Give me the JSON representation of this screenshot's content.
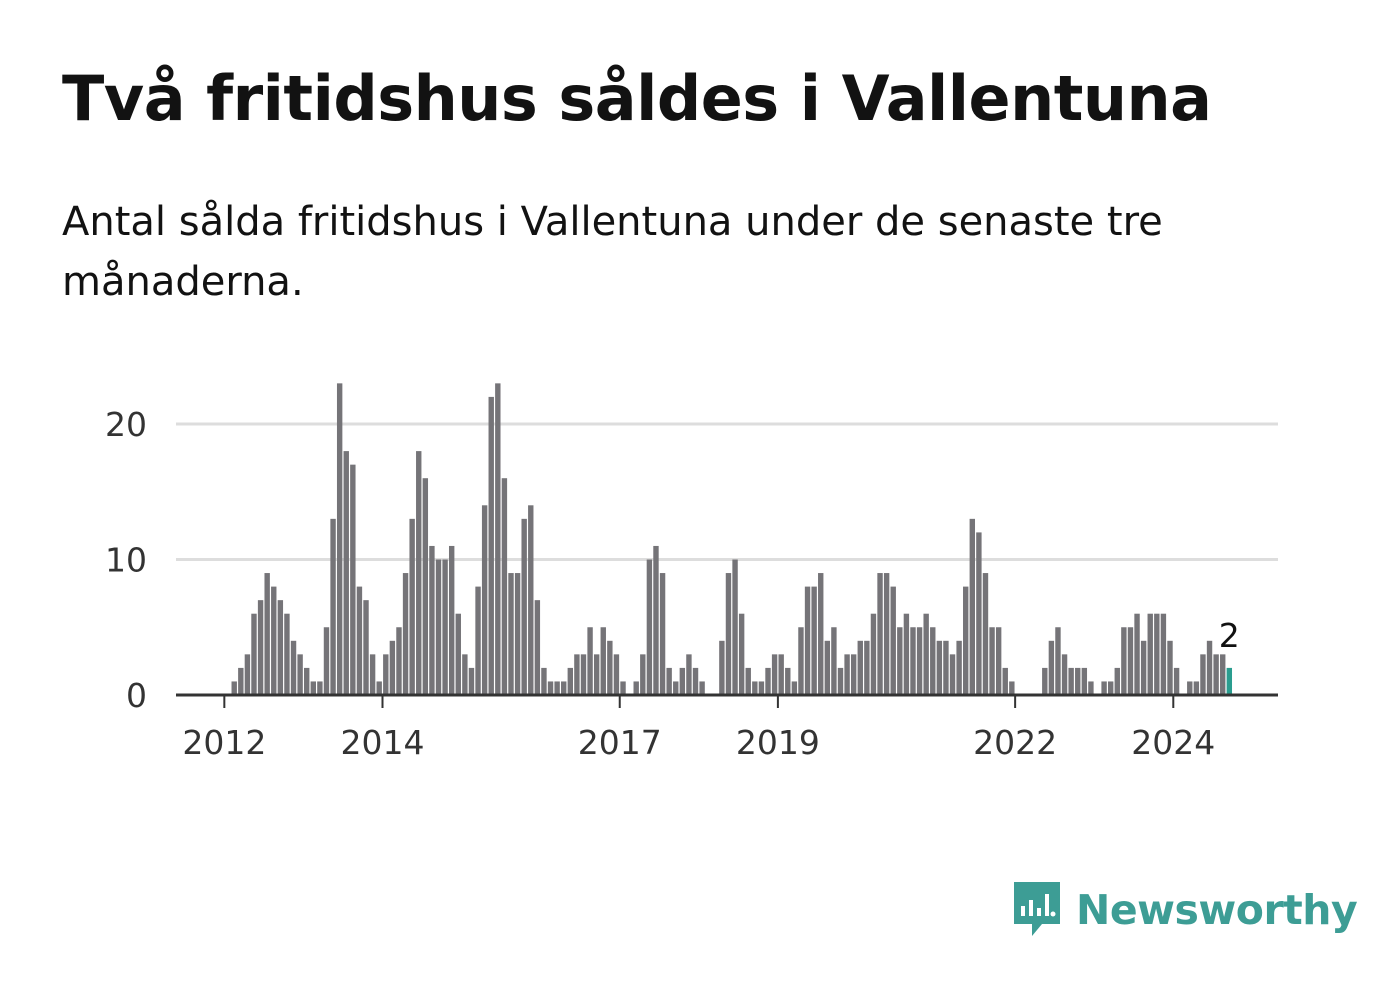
{
  "header": {
    "title": "Två fritidshus såldes i Vallentuna",
    "subtitle": "Antal sålda fritidshus i Vallentuna under de senaste tre månaderna."
  },
  "brand": {
    "name": "Newsworthy",
    "icon": "newsworthy-logo-icon"
  },
  "colors": {
    "bar": "#757478",
    "highlight": "#2a9d8f",
    "grid": "#dddddd",
    "axis": "#333333",
    "brand": "#3d9d95"
  },
  "chart_data": {
    "type": "bar",
    "title": "Antal sålda fritidshus i Vallentuna",
    "xlabel": "",
    "ylabel": "",
    "ylim": [
      0,
      23
    ],
    "yticks": [
      0,
      10,
      20
    ],
    "xticks": [
      {
        "label": "2012",
        "index": 7
      },
      {
        "label": "2014",
        "index": 31
      },
      {
        "label": "2017",
        "index": 67
      },
      {
        "label": "2019",
        "index": 91
      },
      {
        "label": "2022",
        "index": 127
      },
      {
        "label": "2024",
        "index": 151
      }
    ],
    "start": "2011-01",
    "highlight_last": true,
    "last_value_label": "2",
    "values": [
      0,
      0,
      0,
      0,
      0,
      0,
      0,
      0,
      1,
      2,
      3,
      6,
      7,
      9,
      8,
      7,
      6,
      4,
      3,
      2,
      1,
      1,
      5,
      13,
      23,
      18,
      17,
      8,
      7,
      3,
      1,
      3,
      4,
      5,
      9,
      13,
      18,
      16,
      11,
      10,
      10,
      11,
      6,
      3,
      2,
      8,
      14,
      22,
      23,
      16,
      9,
      9,
      13,
      14,
      7,
      2,
      1,
      1,
      1,
      2,
      3,
      3,
      5,
      3,
      5,
      4,
      3,
      1,
      0,
      1,
      3,
      10,
      11,
      9,
      2,
      1,
      2,
      3,
      2,
      1,
      0,
      0,
      4,
      9,
      10,
      6,
      2,
      1,
      1,
      2,
      3,
      3,
      2,
      1,
      5,
      8,
      8,
      9,
      4,
      5,
      2,
      3,
      3,
      4,
      4,
      6,
      9,
      9,
      8,
      5,
      6,
      5,
      5,
      6,
      5,
      4,
      4,
      3,
      4,
      8,
      13,
      12,
      9,
      5,
      5,
      2,
      1,
      0,
      0,
      0,
      0,
      2,
      4,
      5,
      3,
      2,
      2,
      2,
      1,
      0,
      1,
      1,
      2,
      5,
      5,
      6,
      4,
      6,
      6,
      6,
      4,
      2,
      0,
      1,
      1,
      3,
      4,
      3,
      3,
      2
    ]
  }
}
